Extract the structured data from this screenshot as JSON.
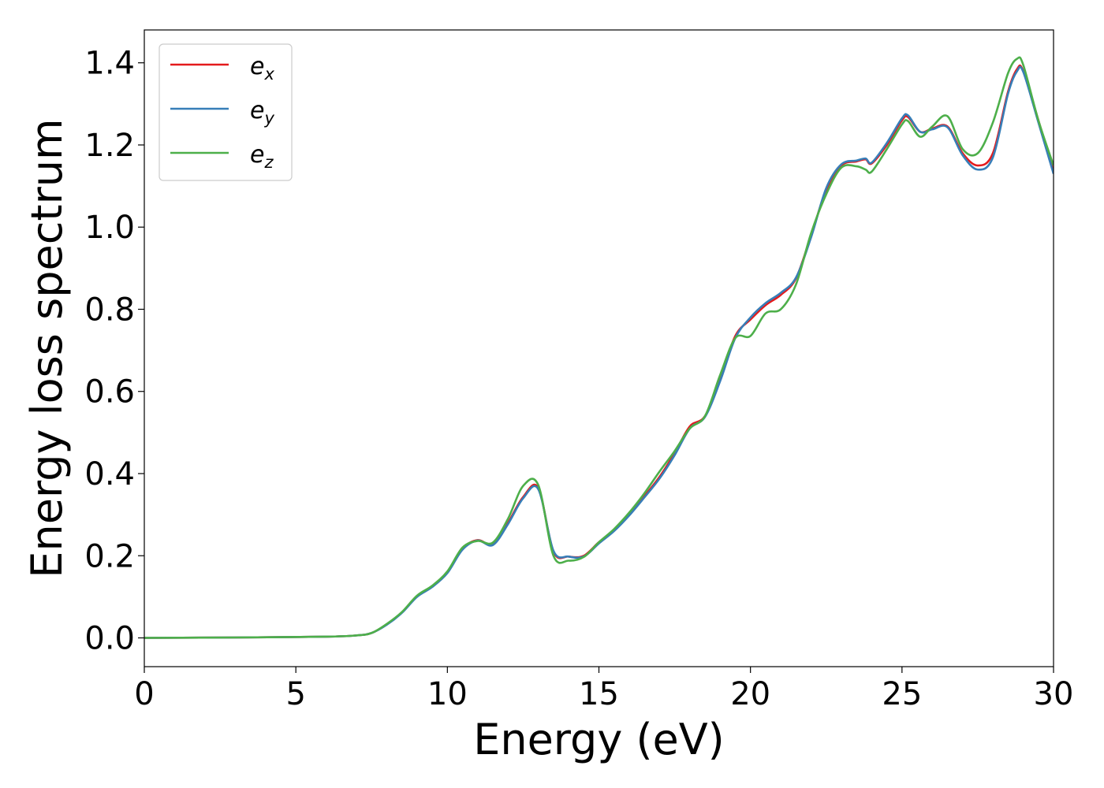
{
  "chart_data": {
    "type": "line",
    "title": "",
    "xlabel": "Energy (eV)",
    "ylabel": "Energy loss spectrum",
    "xlim": [
      0,
      30
    ],
    "ylim": [
      -0.07,
      1.48
    ],
    "xticks": [
      0,
      5,
      10,
      15,
      20,
      25,
      30
    ],
    "xtick_labels": [
      "0",
      "5",
      "10",
      "15",
      "20",
      "25",
      "30"
    ],
    "yticks": [
      0.0,
      0.2,
      0.4,
      0.6,
      0.8,
      1.0,
      1.2,
      1.4
    ],
    "ytick_labels": [
      "0.0",
      "0.2",
      "0.4",
      "0.6",
      "0.8",
      "1.0",
      "1.2",
      "1.4"
    ],
    "grid": false,
    "legend_position": "top-left",
    "series": [
      {
        "name": "e_x",
        "base": "e",
        "sub": "x",
        "color": "#e41a1c",
        "x": [
          0,
          3,
          6,
          7,
          7.5,
          8,
          8.5,
          9,
          9.5,
          10,
          10.5,
          11,
          11.5,
          12,
          12.5,
          13,
          13.5,
          14,
          14.5,
          15,
          15.5,
          16,
          16.5,
          17,
          17.5,
          18,
          18.5,
          19,
          19.5,
          20,
          20.5,
          21,
          21.5,
          22,
          22.5,
          23,
          23.5,
          23.8,
          24,
          24.5,
          25,
          25.2,
          25.6,
          26,
          26.5,
          27,
          27.5,
          28,
          28.5,
          28.8,
          29,
          29.5,
          30
        ],
        "y": [
          0.0,
          0.001,
          0.003,
          0.006,
          0.012,
          0.033,
          0.062,
          0.102,
          0.125,
          0.16,
          0.218,
          0.238,
          0.228,
          0.28,
          0.343,
          0.365,
          0.21,
          0.198,
          0.2,
          0.233,
          0.262,
          0.3,
          0.345,
          0.392,
          0.45,
          0.515,
          0.54,
          0.63,
          0.735,
          0.775,
          0.81,
          0.835,
          0.875,
          0.98,
          1.09,
          1.15,
          1.16,
          1.165,
          1.155,
          1.2,
          1.26,
          1.268,
          1.232,
          1.24,
          1.245,
          1.18,
          1.15,
          1.18,
          1.33,
          1.385,
          1.38,
          1.26,
          1.135
        ]
      },
      {
        "name": "e_y",
        "base": "e",
        "sub": "y",
        "color": "#377eb8",
        "x": [
          0,
          3,
          6,
          7,
          7.5,
          8,
          8.5,
          9,
          9.5,
          10,
          10.5,
          11,
          11.5,
          12,
          12.5,
          13,
          13.5,
          14,
          14.5,
          15,
          15.5,
          16,
          16.5,
          17,
          17.5,
          18,
          18.5,
          19,
          19.5,
          20,
          20.5,
          21,
          21.5,
          22,
          22.5,
          23,
          23.5,
          23.8,
          24,
          24.5,
          25,
          25.2,
          25.6,
          26,
          26.5,
          27,
          27.5,
          28,
          28.5,
          28.8,
          29,
          29.5,
          30
        ],
        "y": [
          0.0,
          0.001,
          0.003,
          0.006,
          0.012,
          0.032,
          0.061,
          0.1,
          0.124,
          0.158,
          0.215,
          0.237,
          0.226,
          0.277,
          0.34,
          0.362,
          0.212,
          0.198,
          0.198,
          0.23,
          0.26,
          0.298,
          0.342,
          0.388,
          0.445,
          0.51,
          0.538,
          0.625,
          0.73,
          0.78,
          0.815,
          0.84,
          0.877,
          0.975,
          1.095,
          1.153,
          1.162,
          1.167,
          1.157,
          1.205,
          1.265,
          1.272,
          1.232,
          1.238,
          1.243,
          1.175,
          1.14,
          1.17,
          1.325,
          1.38,
          1.378,
          1.255,
          1.13
        ]
      },
      {
        "name": "e_z",
        "base": "e",
        "sub": "z",
        "color": "#4daf4a",
        "x": [
          0,
          3,
          6,
          7,
          7.5,
          8,
          8.5,
          9,
          9.5,
          10,
          10.5,
          11,
          11.5,
          12,
          12.5,
          13,
          13.5,
          14,
          14.5,
          15,
          15.5,
          16,
          16.5,
          17,
          17.5,
          18,
          18.5,
          19,
          19.5,
          20,
          20.5,
          21,
          21.5,
          22,
          22.5,
          23,
          23.5,
          23.8,
          24,
          24.5,
          25,
          25.2,
          25.6,
          26,
          26.5,
          27,
          27.5,
          28,
          28.5,
          28.8,
          29,
          29.5,
          30
        ],
        "y": [
          0.0,
          0.001,
          0.003,
          0.006,
          0.012,
          0.034,
          0.063,
          0.103,
          0.127,
          0.162,
          0.22,
          0.236,
          0.232,
          0.29,
          0.37,
          0.372,
          0.2,
          0.188,
          0.197,
          0.233,
          0.265,
          0.305,
          0.352,
          0.405,
          0.455,
          0.51,
          0.54,
          0.64,
          0.73,
          0.735,
          0.79,
          0.8,
          0.86,
          0.985,
          1.08,
          1.145,
          1.148,
          1.14,
          1.135,
          1.19,
          1.25,
          1.258,
          1.22,
          1.245,
          1.27,
          1.19,
          1.18,
          1.255,
          1.375,
          1.41,
          1.395,
          1.26,
          1.15
        ]
      }
    ]
  }
}
